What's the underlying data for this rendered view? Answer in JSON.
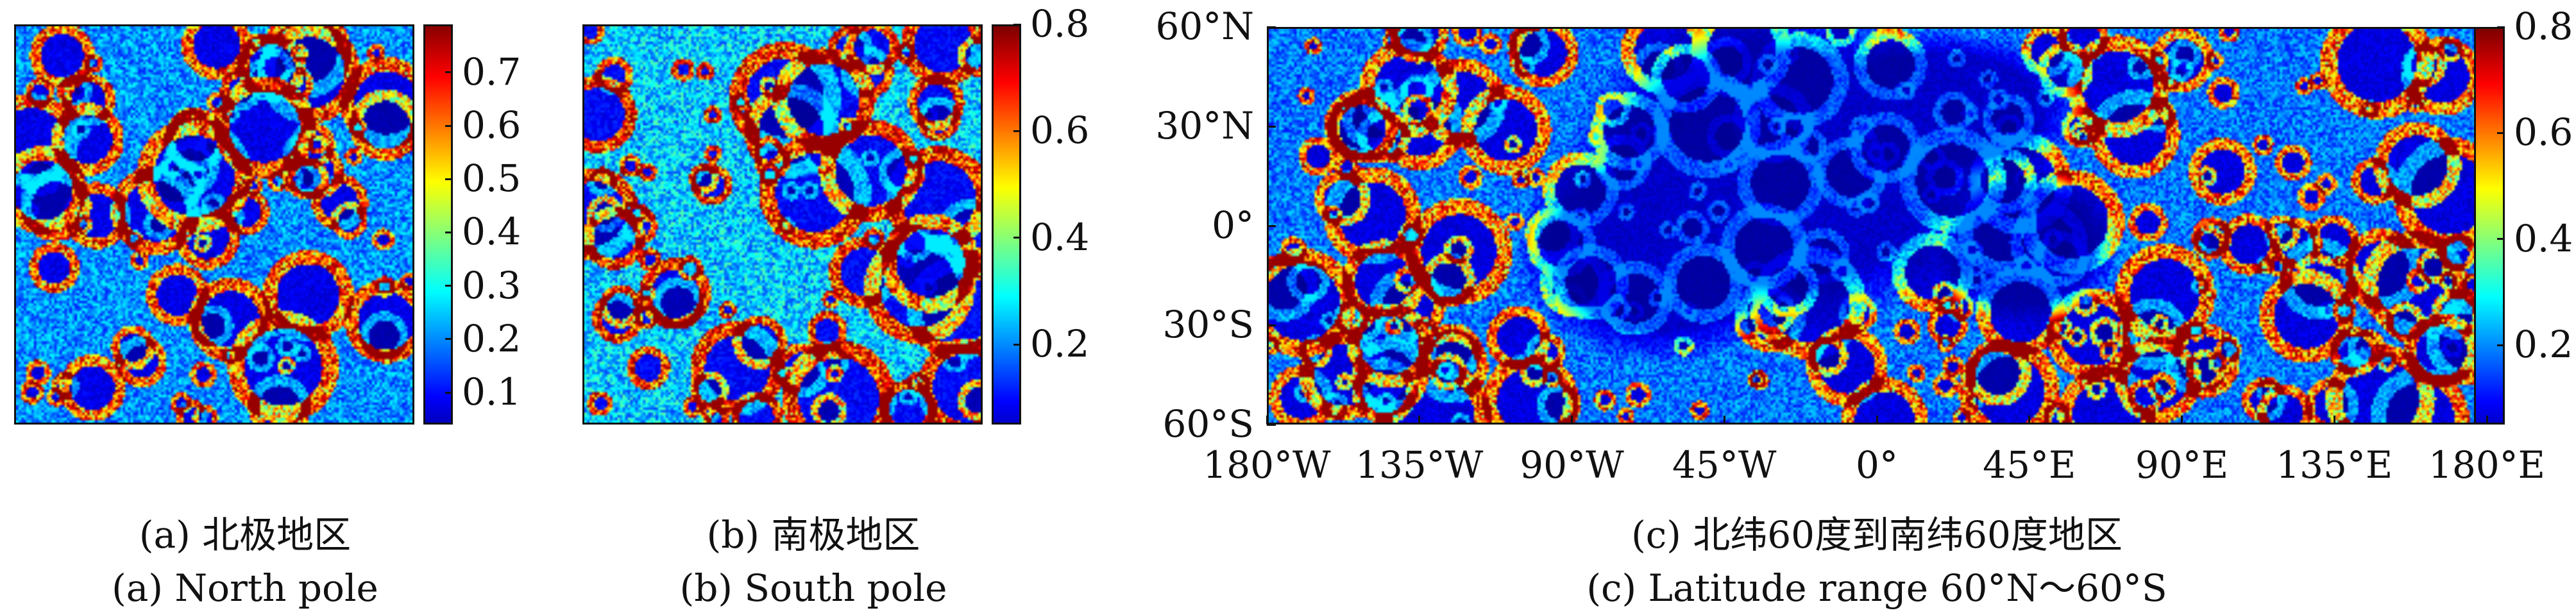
{
  "colors": {
    "colormap": "jet",
    "colormap_stops": [
      "#00008f",
      "#0000ff",
      "#00ffff",
      "#ffff00",
      "#ff0000",
      "#800000"
    ]
  },
  "chart_data": [
    {
      "type": "heatmap",
      "name": "north-pole",
      "caption_zh": "(a) 北极地区",
      "caption_en": "(a) North pole",
      "colorbar": {
        "range": [
          0.04,
          0.79
        ],
        "ticks": [
          0.1,
          0.2,
          0.3,
          0.4,
          0.5,
          0.6,
          0.7
        ],
        "tick_labels": [
          "0.1",
          "0.2",
          "0.3",
          "0.4",
          "0.5",
          "0.6",
          "0.7"
        ]
      },
      "value_mean": 0.2,
      "axes": false
    },
    {
      "type": "heatmap",
      "name": "south-pole",
      "caption_zh": "(b) 南极地区",
      "caption_en": "(b) South pole",
      "colorbar": {
        "range": [
          0.05,
          0.8
        ],
        "ticks": [
          0.2,
          0.4,
          0.6,
          0.8
        ],
        "tick_labels": [
          "0.2",
          "0.4",
          "0.6",
          "0.8"
        ]
      },
      "value_mean": 0.25,
      "axes": false
    },
    {
      "type": "heatmap",
      "name": "latitude-range",
      "caption_zh": "(c) 北纬60度到南纬60度地区",
      "caption_en": "(c) Latitude range 60°N～60°S",
      "x_ticks": [
        -180,
        -135,
        -90,
        -45,
        0,
        45,
        90,
        135,
        180
      ],
      "x_tick_labels": [
        "180°W",
        "135°W",
        "90°W",
        "45°W",
        "0°",
        "45°E",
        "90°E",
        "135°E",
        "180°E"
      ],
      "xlim": [
        -180,
        180
      ],
      "y_ticks": [
        60,
        30,
        0,
        -30,
        -60
      ],
      "y_tick_labels": [
        "60°N",
        "30°N",
        "0°",
        "30°S",
        "60°S"
      ],
      "ylim": [
        -60,
        60
      ],
      "colorbar": {
        "range": [
          0.05,
          0.8
        ],
        "ticks": [
          0.2,
          0.4,
          0.6,
          0.8
        ],
        "tick_labels": [
          "0.2",
          "0.4",
          "0.6",
          "0.8"
        ]
      },
      "value_mean": 0.18,
      "axes": true
    }
  ]
}
